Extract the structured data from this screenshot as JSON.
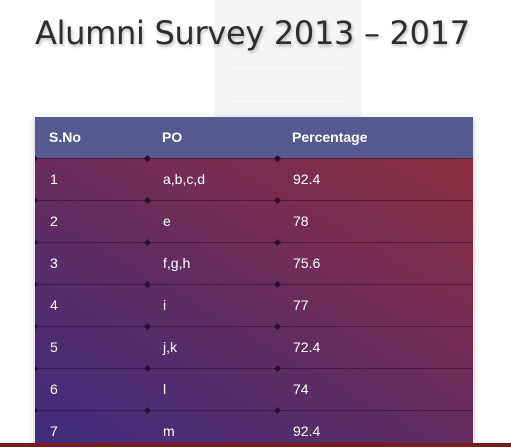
{
  "page": {
    "title": "Alumni Survey 2013 – 2017"
  },
  "table": {
    "headers": {
      "sno": "S.No",
      "po": "PO",
      "percentage": "Percentage"
    },
    "rows": [
      {
        "sno": "1",
        "po": "a,b,c,d",
        "percentage": "92.4"
      },
      {
        "sno": "2",
        "po": "e",
        "percentage": "78"
      },
      {
        "sno": "3",
        "po": "f,g,h",
        "percentage": "75.6"
      },
      {
        "sno": "4",
        "po": "i",
        "percentage": "77"
      },
      {
        "sno": "5",
        "po": "j,k",
        "percentage": "72.4"
      },
      {
        "sno": "6",
        "po": "l",
        "percentage": "74"
      },
      {
        "sno": "7",
        "po": "m",
        "percentage": "92.4"
      }
    ]
  },
  "colors": {
    "header_bg": "#55598f",
    "gradient_start": "#3f2d7e",
    "gradient_end": "#8e2d3a",
    "bottom_bar": "#7a1a1a"
  }
}
